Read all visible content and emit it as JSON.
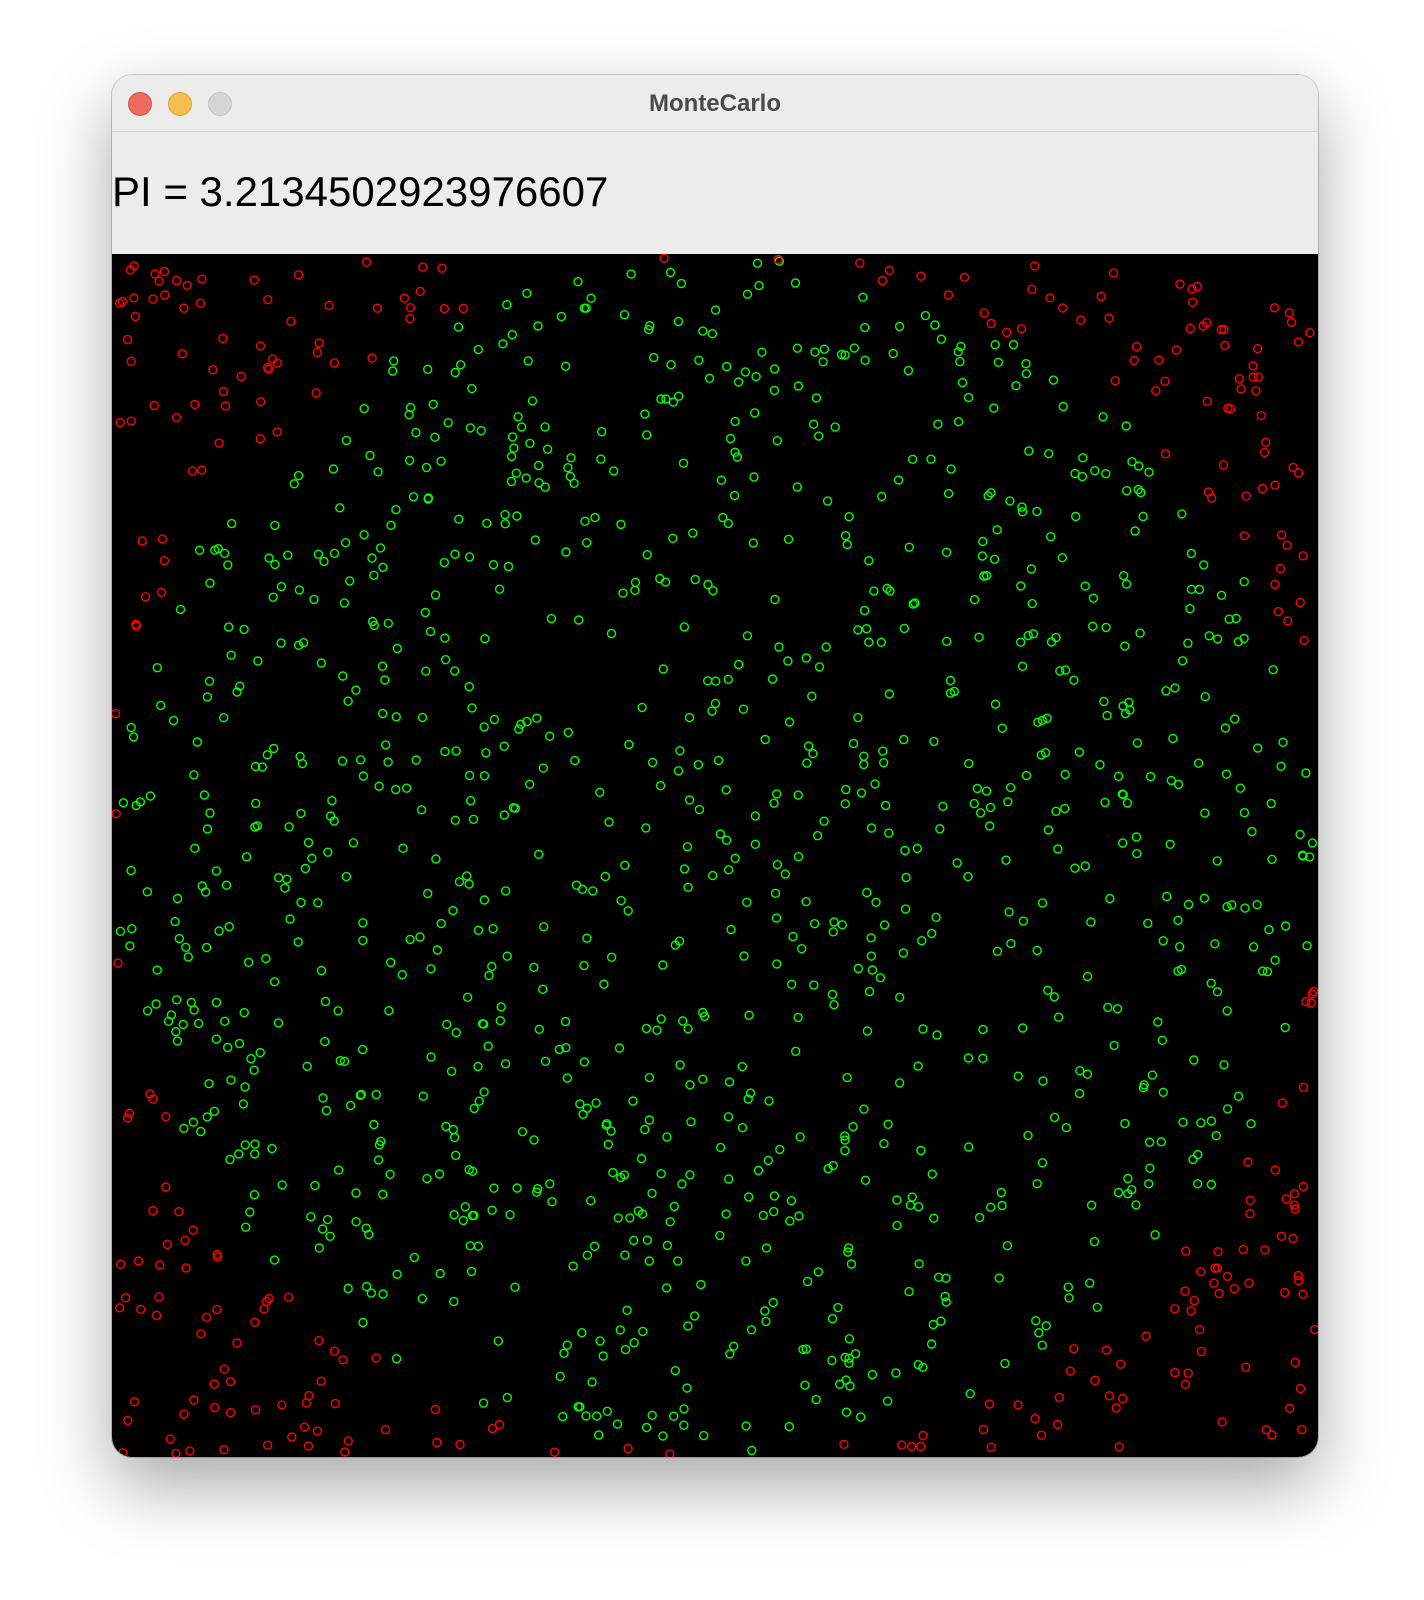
{
  "window": {
    "title": "MonteCarlo",
    "controls": [
      {
        "name": "close-button",
        "color": "#ec6a5e",
        "border": "#d4544a"
      },
      {
        "name": "minimize-button",
        "color": "#f4bf4f",
        "border": "#d9a63b"
      },
      {
        "name": "zoom-button",
        "color": "#d5d5d5",
        "border": "#c2c2c2"
      }
    ]
  },
  "header": {
    "pi_text": "PI = 3.2134502923976607"
  },
  "simulation": {
    "inside_color": "#00ff00",
    "outside_color": "#ff0000",
    "background_color": "#000000",
    "pi_estimate": 3.2134502923976607,
    "inside_count": 1099,
    "total_count": 1368
  }
}
